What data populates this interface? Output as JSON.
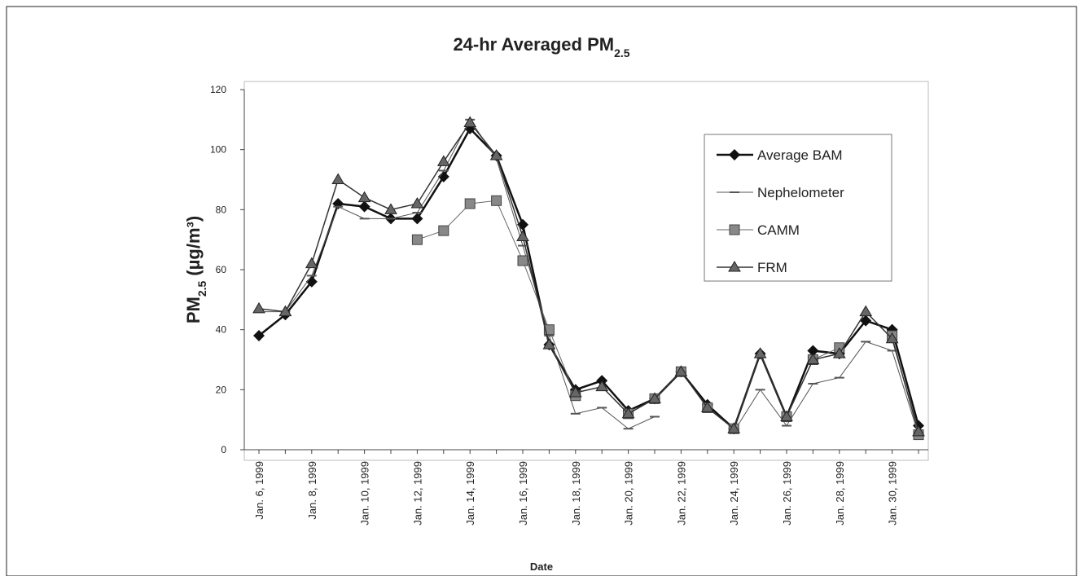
{
  "chart_data": {
    "type": "line",
    "title": [
      {
        "text": "24-hr Averaged PM"
      },
      {
        "text": "2.5",
        "sub": true
      }
    ],
    "y_label": [
      {
        "text": "PM"
      },
      {
        "text": "2.5",
        "sub": true
      },
      {
        "text": " (µg/m³)"
      }
    ],
    "x_label": "Date",
    "categories": [
      "Jan. 6, 1999",
      null,
      "Jan. 8, 1999",
      null,
      "Jan. 10, 1999",
      null,
      "Jan. 12, 1999",
      null,
      "Jan. 14, 1999",
      null,
      "Jan. 16, 1999",
      null,
      "Jan. 18, 1999",
      null,
      "Jan. 20, 1999",
      null,
      "Jan. 22, 1999",
      null,
      "Jan. 24, 1999",
      null,
      "Jan. 26, 1999",
      null,
      "Jan. 28, 1999",
      null,
      "Jan. 30, 1999",
      null
    ],
    "ylim": [
      0,
      120
    ],
    "yticks": [
      0,
      20,
      40,
      60,
      80,
      100,
      120
    ],
    "legend": "top-right",
    "series": [
      {
        "name": "Average BAM",
        "color": "#111111",
        "marker": "diamond",
        "width": 2.5,
        "values": [
          38,
          45,
          56,
          82,
          81,
          77,
          77,
          91,
          107,
          98,
          75,
          35,
          20,
          23,
          13,
          17,
          26,
          15,
          7,
          32,
          11,
          33,
          32,
          43,
          40,
          8
        ]
      },
      {
        "name": "Nephelometer",
        "color": "#555555",
        "marker": "dash",
        "width": 1,
        "values": [
          46,
          46,
          58,
          81,
          77,
          77,
          79,
          93,
          110,
          97,
          68,
          38,
          12,
          14,
          7,
          11,
          null,
          null,
          6,
          20,
          8,
          22,
          24,
          36,
          33,
          5
        ]
      },
      {
        "name": "CAMM",
        "color": "#666666",
        "marker": "square",
        "width": 1,
        "values": [
          null,
          null,
          null,
          null,
          null,
          null,
          70,
          73,
          82,
          83,
          63,
          40,
          18,
          null,
          12,
          17,
          26,
          14,
          7,
          null,
          11,
          30,
          34,
          null,
          38,
          5
        ]
      },
      {
        "name": "FRM",
        "color": "#333333",
        "marker": "triangle",
        "width": 1.5,
        "values": [
          47,
          46,
          62,
          90,
          84,
          80,
          82,
          96,
          109,
          98,
          71,
          35,
          19,
          21,
          12,
          17,
          26,
          14,
          7,
          32,
          11,
          30,
          32,
          46,
          37,
          6
        ]
      }
    ]
  }
}
